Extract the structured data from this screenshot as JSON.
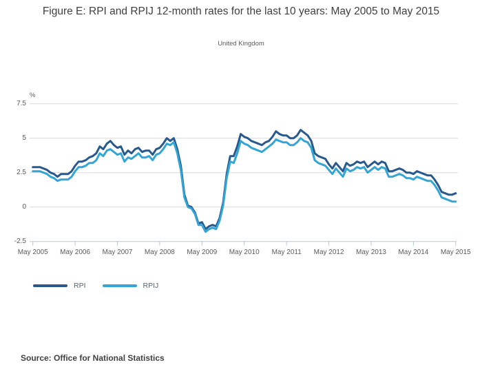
{
  "title": "Figure E: RPI and RPIJ 12-month rates for the last 10 years: May 2005 to May 2015",
  "subtitle": "United Kingdom",
  "unit_label": "%",
  "source": "Source: Office for National Statistics",
  "colors": {
    "rpi": "#27598d",
    "rpij": "#33a5d4",
    "gridline": "#d9d9d9",
    "axis": "#b9c7d5",
    "tick_text": "#5a5a5a"
  },
  "legend": [
    {
      "label": "RPI",
      "color": "#27598d"
    },
    {
      "label": "RPIJ",
      "color": "#33a5d4"
    }
  ],
  "chart_data": {
    "type": "line",
    "title": "Figure E: RPI and RPIJ 12-month rates for the last 10 years: May 2005 to May 2015",
    "subtitle": "United Kingdom",
    "ylabel": "%",
    "ylim": [
      -2.5,
      7.5
    ],
    "y_ticks": [
      -2.5,
      0,
      2.5,
      5,
      7.5
    ],
    "y_tick_labels": [
      "-2.5",
      "0",
      "2.5",
      "5",
      "7.5"
    ],
    "grid": "horizontal",
    "legend_position": "bottom-left",
    "x_unit": "month",
    "x_start": "May 2005",
    "x_end": "May 2015",
    "x_tick_labels": [
      "May 2005",
      "May 2006",
      "May 2007",
      "May 2008",
      "May 2009",
      "May 2010",
      "May 2011",
      "May 2012",
      "May 2013",
      "May 2014",
      "May 2015"
    ],
    "series": [
      {
        "name": "RPI",
        "color": "#27598d",
        "values": [
          2.9,
          2.9,
          2.9,
          2.8,
          2.7,
          2.5,
          2.4,
          2.2,
          2.4,
          2.4,
          2.4,
          2.6,
          3.0,
          3.3,
          3.3,
          3.4,
          3.6,
          3.7,
          3.9,
          4.4,
          4.2,
          4.6,
          4.8,
          4.5,
          4.3,
          4.4,
          3.8,
          4.1,
          3.9,
          4.2,
          4.3,
          4.0,
          4.1,
          4.1,
          3.8,
          4.2,
          4.3,
          4.6,
          5.0,
          4.8,
          5.0,
          4.2,
          3.0,
          0.9,
          0.1,
          0.0,
          -0.4,
          -1.2,
          -1.1,
          -1.6,
          -1.4,
          -1.3,
          -1.4,
          -0.8,
          0.3,
          2.4,
          3.7,
          3.7,
          4.4,
          5.3,
          5.1,
          5.0,
          4.8,
          4.7,
          4.6,
          4.5,
          4.7,
          4.8,
          5.1,
          5.5,
          5.3,
          5.2,
          5.2,
          5.0,
          5.0,
          5.2,
          5.6,
          5.4,
          5.2,
          4.8,
          3.9,
          3.7,
          3.6,
          3.5,
          3.1,
          2.8,
          3.2,
          2.9,
          2.6,
          3.2,
          3.0,
          3.1,
          3.3,
          3.2,
          3.3,
          2.9,
          3.1,
          3.3,
          3.1,
          3.3,
          3.2,
          2.6,
          2.6,
          2.7,
          2.8,
          2.7,
          2.5,
          2.5,
          2.4,
          2.6,
          2.5,
          2.4,
          2.3,
          2.3,
          2.0,
          1.6,
          1.1,
          1.0,
          0.9,
          0.9,
          1.0
        ]
      },
      {
        "name": "RPIJ",
        "color": "#33a5d4",
        "values": [
          2.6,
          2.6,
          2.6,
          2.5,
          2.4,
          2.2,
          2.1,
          1.9,
          2.0,
          2.0,
          2.0,
          2.2,
          2.6,
          2.9,
          2.9,
          3.0,
          3.2,
          3.2,
          3.4,
          3.9,
          3.7,
          4.1,
          4.2,
          4.0,
          3.8,
          3.9,
          3.3,
          3.6,
          3.5,
          3.7,
          3.9,
          3.6,
          3.6,
          3.7,
          3.4,
          3.8,
          3.9,
          4.2,
          4.6,
          4.5,
          4.7,
          3.9,
          2.7,
          0.7,
          0.0,
          -0.1,
          -0.5,
          -1.3,
          -1.3,
          -1.8,
          -1.6,
          -1.5,
          -1.6,
          -1.0,
          0.1,
          2.1,
          3.3,
          3.2,
          3.9,
          4.8,
          4.6,
          4.5,
          4.3,
          4.2,
          4.1,
          4.0,
          4.2,
          4.4,
          4.6,
          4.9,
          4.8,
          4.7,
          4.7,
          4.5,
          4.5,
          4.7,
          5.0,
          4.8,
          4.7,
          4.3,
          3.4,
          3.2,
          3.1,
          3.0,
          2.7,
          2.4,
          2.8,
          2.5,
          2.2,
          2.8,
          2.6,
          2.7,
          2.9,
          2.8,
          2.9,
          2.5,
          2.7,
          2.9,
          2.7,
          2.9,
          2.8,
          2.2,
          2.2,
          2.3,
          2.4,
          2.3,
          2.1,
          2.1,
          2.0,
          2.2,
          2.1,
          2.0,
          1.9,
          1.9,
          1.6,
          1.2,
          0.7,
          0.6,
          0.5,
          0.4,
          0.4
        ]
      }
    ]
  }
}
